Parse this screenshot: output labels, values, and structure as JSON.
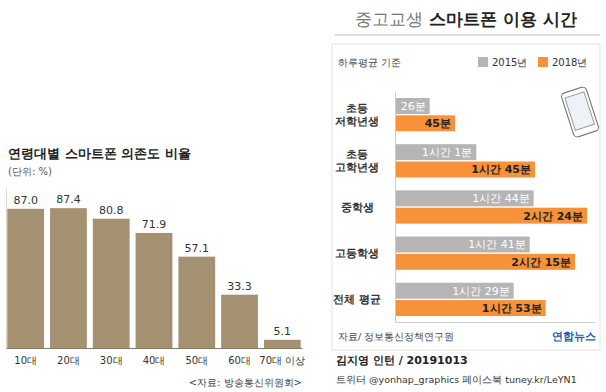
{
  "chart_data": [
    {
      "type": "bar",
      "title": "연령대별 스마트폰 의존도 비율",
      "subtitle": "(단위: %)",
      "categories": [
        "10대",
        "20대",
        "30대",
        "40대",
        "50대",
        "60대",
        "70대 이상"
      ],
      "values": [
        87.0,
        87.4,
        80.8,
        71.9,
        57.1,
        33.3,
        5.1
      ],
      "value_labels": [
        "87.0",
        "87.4",
        "80.8",
        "71.9",
        "57.1",
        "33.3",
        "5.1"
      ],
      "color": "#a39172",
      "ylim": [
        0,
        100
      ],
      "data_labels": true,
      "tick_labels": "x",
      "source": "<자료: 방송통신위원회>"
    },
    {
      "type": "bar",
      "orientation": "horizontal",
      "title": "중고교생 스마트폰 이용 시간",
      "subtitle": "하루평균 기준",
      "categories": [
        "초등\n저학년생",
        "초등\n고학년생",
        "중학생",
        "고등학생",
        "전체 평균"
      ],
      "series": [
        {
          "name": "2015년",
          "color": "#b5b5b5",
          "values": [
            26,
            61,
            104,
            101,
            89
          ],
          "value_labels": [
            "26분",
            "1시간 1분",
            "1시간 44분",
            "1시간 41분",
            "1시간 29분"
          ]
        },
        {
          "name": "2018년",
          "color": "#f7923a",
          "values": [
            45,
            105,
            144,
            135,
            113
          ],
          "value_labels": [
            "45분",
            "1시간 45분",
            "2시간 24분",
            "2시간 15분",
            "1시간 53분"
          ]
        }
      ],
      "xlim": [
        0,
        150
      ],
      "legend": "top-right",
      "data_labels": true,
      "tick_labels": "y",
      "source": "자료/ 정보통신정책연구원"
    }
  ],
  "footer": {
    "agency": "연합뉴스",
    "byline": "김지영 인턴 / 20191013",
    "social": "트위터 @yonhap_graphics 페이스북 tuney.kr/LeYN1"
  }
}
